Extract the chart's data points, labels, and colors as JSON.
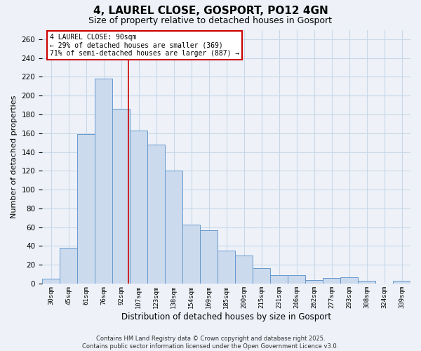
{
  "title": "4, LAUREL CLOSE, GOSPORT, PO12 4GN",
  "subtitle": "Size of property relative to detached houses in Gosport",
  "xlabel": "Distribution of detached houses by size in Gosport",
  "ylabel": "Number of detached properties",
  "categories": [
    "30sqm",
    "45sqm",
    "61sqm",
    "76sqm",
    "92sqm",
    "107sqm",
    "123sqm",
    "138sqm",
    "154sqm",
    "169sqm",
    "185sqm",
    "200sqm",
    "215sqm",
    "231sqm",
    "246sqm",
    "262sqm",
    "277sqm",
    "293sqm",
    "308sqm",
    "324sqm",
    "339sqm"
  ],
  "values": [
    5,
    38,
    159,
    218,
    186,
    163,
    148,
    120,
    63,
    57,
    35,
    30,
    16,
    9,
    9,
    4,
    6,
    7,
    3,
    0,
    3
  ],
  "bar_color": "#ccdaee",
  "bar_edge_color": "#6699cc",
  "vline_x_pos": 4.425,
  "vline_color": "#cc0000",
  "annotation_title": "4 LAUREL CLOSE: 90sqm",
  "annotation_line1": "← 29% of detached houses are smaller (369)",
  "annotation_line2": "71% of semi-detached houses are larger (887) →",
  "annotation_box_facecolor": "#ffffff",
  "annotation_box_edgecolor": "#cc0000",
  "footnote1": "Contains HM Land Registry data © Crown copyright and database right 2025.",
  "footnote2": "Contains public sector information licensed under the Open Government Licence v3.0.",
  "ylim": [
    0,
    270
  ],
  "yticks": [
    0,
    20,
    40,
    60,
    80,
    100,
    120,
    140,
    160,
    180,
    200,
    220,
    240,
    260
  ],
  "grid_color": "#c8d8e8",
  "background_color": "#eef2f8",
  "title_fontsize": 11,
  "subtitle_fontsize": 9,
  "ylabel_fontsize": 8,
  "xlabel_fontsize": 8.5,
  "ytick_fontsize": 7.5,
  "xtick_fontsize": 6.5,
  "annotation_fontsize": 7,
  "footnote_fontsize": 6
}
